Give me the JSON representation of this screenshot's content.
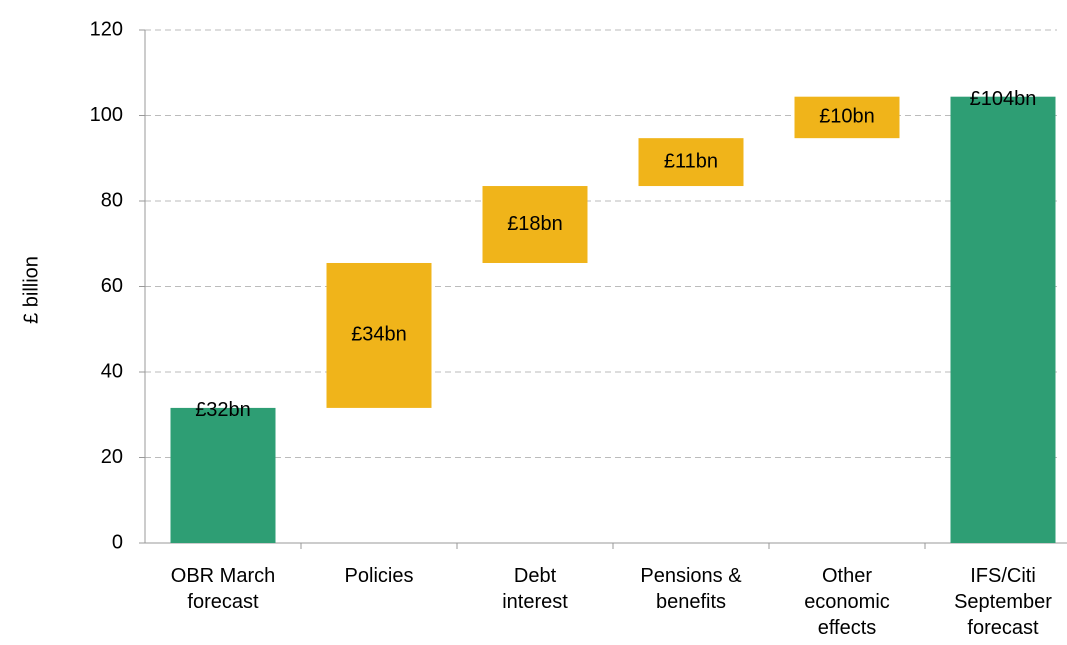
{
  "chart_data": {
    "type": "waterfall",
    "y_label": "£ billion",
    "categories": [
      "OBR March forecast",
      "Policies",
      "Debt interest",
      "Pensions & benefits",
      "Other economic effects",
      "IFS/Citi September forecast"
    ],
    "values": [
      31.6,
      33.9,
      18.0,
      11.2,
      9.7,
      104.4
    ],
    "value_labels": [
      "£32bn",
      "£34bn",
      "£18bn",
      "£11bn",
      "£10bn",
      "£104bn"
    ],
    "colors": [
      "#2e9e74",
      "#f0b41a",
      "#f0b41a",
      "#f0b41a",
      "#f0b41a",
      "#2e9e74"
    ],
    "ylim": [
      0,
      120
    ],
    "yticks": [
      0,
      20,
      40,
      60,
      80,
      100,
      120
    ],
    "grid": true
  }
}
